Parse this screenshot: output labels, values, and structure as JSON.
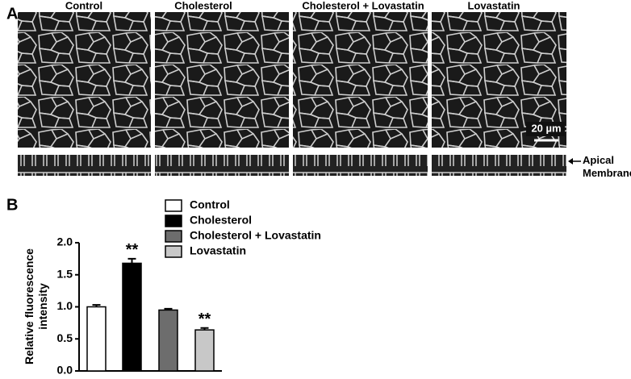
{
  "panel_a": {
    "label": "A",
    "columns": [
      "Control",
      "Cholesterol",
      "Cholesterol + Lovastatin",
      "Lovastatin"
    ],
    "scale_bar": "20 µm",
    "annotation": "Apical Membrane"
  },
  "chart_data": {
    "type": "bar",
    "label": "B",
    "ylabel": "Relative fluorescence intensity",
    "categories": [
      "Control",
      "Cholesterol",
      "Cholesterol + Lovastatin",
      "Lovastatin"
    ],
    "values": [
      1.0,
      1.68,
      0.95,
      0.64
    ],
    "errors": [
      0.03,
      0.07,
      0.02,
      0.03
    ],
    "significance": [
      null,
      "**",
      null,
      "**"
    ],
    "colors": [
      "#ffffff",
      "#000000",
      "#6d6d6d",
      "#c8c8c8"
    ],
    "ylim": [
      0,
      2
    ],
    "yticks": [
      {
        "value": 0,
        "label": "0.0"
      },
      {
        "value": 0.5,
        "label": "0.5"
      },
      {
        "value": 1,
        "label": "1.0"
      },
      {
        "value": 1.5,
        "label": "1.5"
      },
      {
        "value": 2,
        "label": "2.0"
      }
    ]
  }
}
